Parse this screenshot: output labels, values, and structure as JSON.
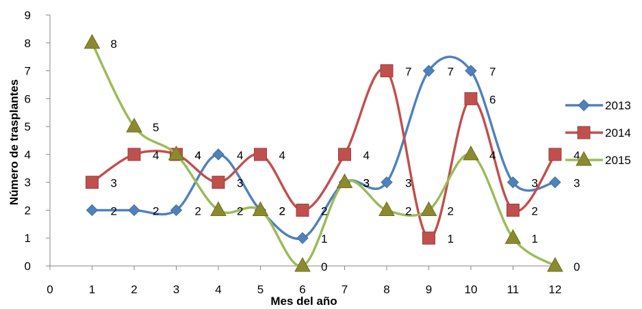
{
  "chart_data": {
    "type": "line",
    "title": "",
    "xlabel": "Mes del año",
    "ylabel": "Número de trasplantes",
    "xlim": [
      0,
      12
    ],
    "ylim": [
      0,
      9
    ],
    "x_ticks": [
      0,
      1,
      2,
      3,
      4,
      5,
      6,
      7,
      8,
      9,
      10,
      11,
      12
    ],
    "y_ticks": [
      0,
      1,
      2,
      3,
      4,
      5,
      6,
      7,
      8,
      9
    ],
    "x": [
      1,
      2,
      3,
      4,
      5,
      6,
      7,
      8,
      9,
      10,
      11,
      12
    ],
    "smooth": true,
    "grid": false,
    "legend_position": "right",
    "series": [
      {
        "name": "2013",
        "color": "#4F81BD",
        "marker": "diamond",
        "values": [
          2,
          2,
          2,
          4,
          2,
          1,
          3,
          3,
          7,
          7,
          3,
          3
        ]
      },
      {
        "name": "2014",
        "color": "#C0504D",
        "marker": "square",
        "values": [
          3,
          4,
          4,
          3,
          4,
          2,
          4,
          7,
          1,
          6,
          2,
          4
        ]
      },
      {
        "name": "2015",
        "color": "#9BBB59",
        "marker": "triangle",
        "values": [
          8,
          5,
          4,
          2,
          2,
          0,
          3,
          2,
          2,
          4,
          1,
          0
        ]
      }
    ]
  }
}
